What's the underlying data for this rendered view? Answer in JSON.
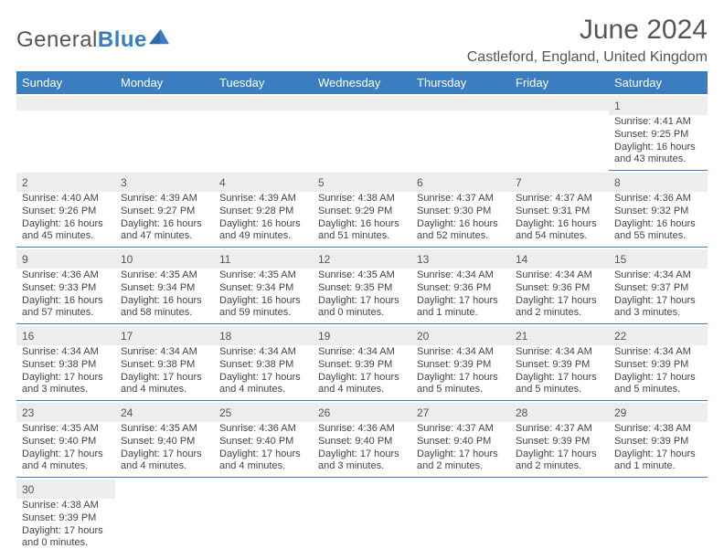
{
  "header": {
    "logo_part1": "General",
    "logo_part2": "Blue",
    "title": "June 2024",
    "location": "Castleford, England, United Kingdom"
  },
  "calendar": {
    "header_color": "#3a7ec1",
    "weekday_bg": "#3a7ec1",
    "daynum_bg": "#ededed",
    "border_color": "#3a7ec1",
    "weekdays": [
      "Sunday",
      "Monday",
      "Tuesday",
      "Wednesday",
      "Thursday",
      "Friday",
      "Saturday"
    ],
    "weeks": [
      [
        null,
        null,
        null,
        null,
        null,
        null,
        {
          "n": "1",
          "sr": "Sunrise: 4:41 AM",
          "ss": "Sunset: 9:25 PM",
          "d1": "Daylight: 16 hours",
          "d2": "and 43 minutes."
        }
      ],
      [
        {
          "n": "2",
          "sr": "Sunrise: 4:40 AM",
          "ss": "Sunset: 9:26 PM",
          "d1": "Daylight: 16 hours",
          "d2": "and 45 minutes."
        },
        {
          "n": "3",
          "sr": "Sunrise: 4:39 AM",
          "ss": "Sunset: 9:27 PM",
          "d1": "Daylight: 16 hours",
          "d2": "and 47 minutes."
        },
        {
          "n": "4",
          "sr": "Sunrise: 4:39 AM",
          "ss": "Sunset: 9:28 PM",
          "d1": "Daylight: 16 hours",
          "d2": "and 49 minutes."
        },
        {
          "n": "5",
          "sr": "Sunrise: 4:38 AM",
          "ss": "Sunset: 9:29 PM",
          "d1": "Daylight: 16 hours",
          "d2": "and 51 minutes."
        },
        {
          "n": "6",
          "sr": "Sunrise: 4:37 AM",
          "ss": "Sunset: 9:30 PM",
          "d1": "Daylight: 16 hours",
          "d2": "and 52 minutes."
        },
        {
          "n": "7",
          "sr": "Sunrise: 4:37 AM",
          "ss": "Sunset: 9:31 PM",
          "d1": "Daylight: 16 hours",
          "d2": "and 54 minutes."
        },
        {
          "n": "8",
          "sr": "Sunrise: 4:36 AM",
          "ss": "Sunset: 9:32 PM",
          "d1": "Daylight: 16 hours",
          "d2": "and 55 minutes."
        }
      ],
      [
        {
          "n": "9",
          "sr": "Sunrise: 4:36 AM",
          "ss": "Sunset: 9:33 PM",
          "d1": "Daylight: 16 hours",
          "d2": "and 57 minutes."
        },
        {
          "n": "10",
          "sr": "Sunrise: 4:35 AM",
          "ss": "Sunset: 9:34 PM",
          "d1": "Daylight: 16 hours",
          "d2": "and 58 minutes."
        },
        {
          "n": "11",
          "sr": "Sunrise: 4:35 AM",
          "ss": "Sunset: 9:34 PM",
          "d1": "Daylight: 16 hours",
          "d2": "and 59 minutes."
        },
        {
          "n": "12",
          "sr": "Sunrise: 4:35 AM",
          "ss": "Sunset: 9:35 PM",
          "d1": "Daylight: 17 hours",
          "d2": "and 0 minutes."
        },
        {
          "n": "13",
          "sr": "Sunrise: 4:34 AM",
          "ss": "Sunset: 9:36 PM",
          "d1": "Daylight: 17 hours",
          "d2": "and 1 minute."
        },
        {
          "n": "14",
          "sr": "Sunrise: 4:34 AM",
          "ss": "Sunset: 9:36 PM",
          "d1": "Daylight: 17 hours",
          "d2": "and 2 minutes."
        },
        {
          "n": "15",
          "sr": "Sunrise: 4:34 AM",
          "ss": "Sunset: 9:37 PM",
          "d1": "Daylight: 17 hours",
          "d2": "and 3 minutes."
        }
      ],
      [
        {
          "n": "16",
          "sr": "Sunrise: 4:34 AM",
          "ss": "Sunset: 9:38 PM",
          "d1": "Daylight: 17 hours",
          "d2": "and 3 minutes."
        },
        {
          "n": "17",
          "sr": "Sunrise: 4:34 AM",
          "ss": "Sunset: 9:38 PM",
          "d1": "Daylight: 17 hours",
          "d2": "and 4 minutes."
        },
        {
          "n": "18",
          "sr": "Sunrise: 4:34 AM",
          "ss": "Sunset: 9:38 PM",
          "d1": "Daylight: 17 hours",
          "d2": "and 4 minutes."
        },
        {
          "n": "19",
          "sr": "Sunrise: 4:34 AM",
          "ss": "Sunset: 9:39 PM",
          "d1": "Daylight: 17 hours",
          "d2": "and 4 minutes."
        },
        {
          "n": "20",
          "sr": "Sunrise: 4:34 AM",
          "ss": "Sunset: 9:39 PM",
          "d1": "Daylight: 17 hours",
          "d2": "and 5 minutes."
        },
        {
          "n": "21",
          "sr": "Sunrise: 4:34 AM",
          "ss": "Sunset: 9:39 PM",
          "d1": "Daylight: 17 hours",
          "d2": "and 5 minutes."
        },
        {
          "n": "22",
          "sr": "Sunrise: 4:34 AM",
          "ss": "Sunset: 9:39 PM",
          "d1": "Daylight: 17 hours",
          "d2": "and 5 minutes."
        }
      ],
      [
        {
          "n": "23",
          "sr": "Sunrise: 4:35 AM",
          "ss": "Sunset: 9:40 PM",
          "d1": "Daylight: 17 hours",
          "d2": "and 4 minutes."
        },
        {
          "n": "24",
          "sr": "Sunrise: 4:35 AM",
          "ss": "Sunset: 9:40 PM",
          "d1": "Daylight: 17 hours",
          "d2": "and 4 minutes."
        },
        {
          "n": "25",
          "sr": "Sunrise: 4:36 AM",
          "ss": "Sunset: 9:40 PM",
          "d1": "Daylight: 17 hours",
          "d2": "and 4 minutes."
        },
        {
          "n": "26",
          "sr": "Sunrise: 4:36 AM",
          "ss": "Sunset: 9:40 PM",
          "d1": "Daylight: 17 hours",
          "d2": "and 3 minutes."
        },
        {
          "n": "27",
          "sr": "Sunrise: 4:37 AM",
          "ss": "Sunset: 9:40 PM",
          "d1": "Daylight: 17 hours",
          "d2": "and 2 minutes."
        },
        {
          "n": "28",
          "sr": "Sunrise: 4:37 AM",
          "ss": "Sunset: 9:39 PM",
          "d1": "Daylight: 17 hours",
          "d2": "and 2 minutes."
        },
        {
          "n": "29",
          "sr": "Sunrise: 4:38 AM",
          "ss": "Sunset: 9:39 PM",
          "d1": "Daylight: 17 hours",
          "d2": "and 1 minute."
        }
      ],
      [
        {
          "n": "30",
          "sr": "Sunrise: 4:38 AM",
          "ss": "Sunset: 9:39 PM",
          "d1": "Daylight: 17 hours",
          "d2": "and 0 minutes."
        },
        null,
        null,
        null,
        null,
        null,
        null
      ]
    ]
  }
}
